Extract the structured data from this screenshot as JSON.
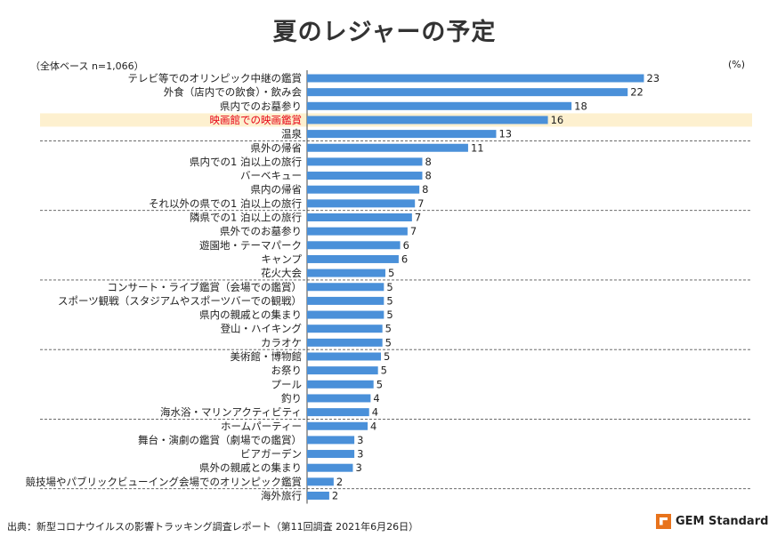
{
  "chart_data": {
    "type": "bar",
    "orientation": "horizontal",
    "title": "夏のレジャーの予定",
    "base_note": "（全体ベース n=1,066）",
    "unit": "(%)",
    "highlight_category": "映画館での映画鑑賞",
    "highlight_color": "#fdf0cf",
    "highlight_text_color": "#e60012",
    "bar_color": "#4a90d9",
    "categories": [
      "テレビ等でのオリンピック中継の鑑賞",
      "外食（店内での飲食）・飲み会",
      "県内でのお墓参り",
      "映画館での映画鑑賞",
      "温泉",
      "県外の帰省",
      "県内での1 泊以上の旅行",
      "バーベキュー",
      "県内の帰省",
      "それ以外の県での1 泊以上の旅行",
      "隣県での1 泊以上の旅行",
      "県外でのお墓参り",
      "遊園地・テーマパーク",
      "キャンプ",
      "花火大会",
      "コンサート・ライブ鑑賞（会場での鑑賞）",
      "スポーツ観戦（スタジアムやスポーツバーでの観戦）",
      "県内の親戚との集まり",
      "登山・ハイキング",
      "カラオケ",
      "美術館・博物館",
      "お祭り",
      "プール",
      "釣り",
      "海水浴・マリンアクティビティ",
      "ホームパーティー",
      "舞台・演劇の鑑賞（劇場での鑑賞）",
      "ビアガーデン",
      "県外の親戚との集まり",
      "競技場やパブリックビューイング会場でのオリンピック鑑賞",
      "海外旅行"
    ],
    "values": [
      23,
      22,
      18,
      16,
      13,
      11,
      8,
      8,
      8,
      7,
      7,
      7,
      6,
      6,
      5,
      5,
      5,
      5,
      5,
      5,
      5,
      5,
      5,
      4,
      4,
      4,
      3,
      3,
      3,
      2,
      2
    ],
    "precise_values": [
      22.8,
      21.7,
      17.9,
      16.3,
      12.8,
      10.9,
      7.8,
      7.8,
      7.6,
      7.3,
      7.1,
      6.8,
      6.3,
      6.2,
      5.3,
      5.2,
      5.2,
      5.2,
      5.1,
      5.1,
      5.0,
      4.8,
      4.5,
      4.3,
      4.2,
      4.1,
      3.2,
      3.2,
      3.1,
      1.8,
      1.5
    ],
    "group_separators_after": [
      4,
      9,
      14,
      19,
      24,
      29
    ]
  },
  "footer": {
    "source": "出典：新型コロナウイルスの影響トラッキング調査レポート（第11回調査 2021年6月26日）",
    "brand": "GEM Standard"
  }
}
